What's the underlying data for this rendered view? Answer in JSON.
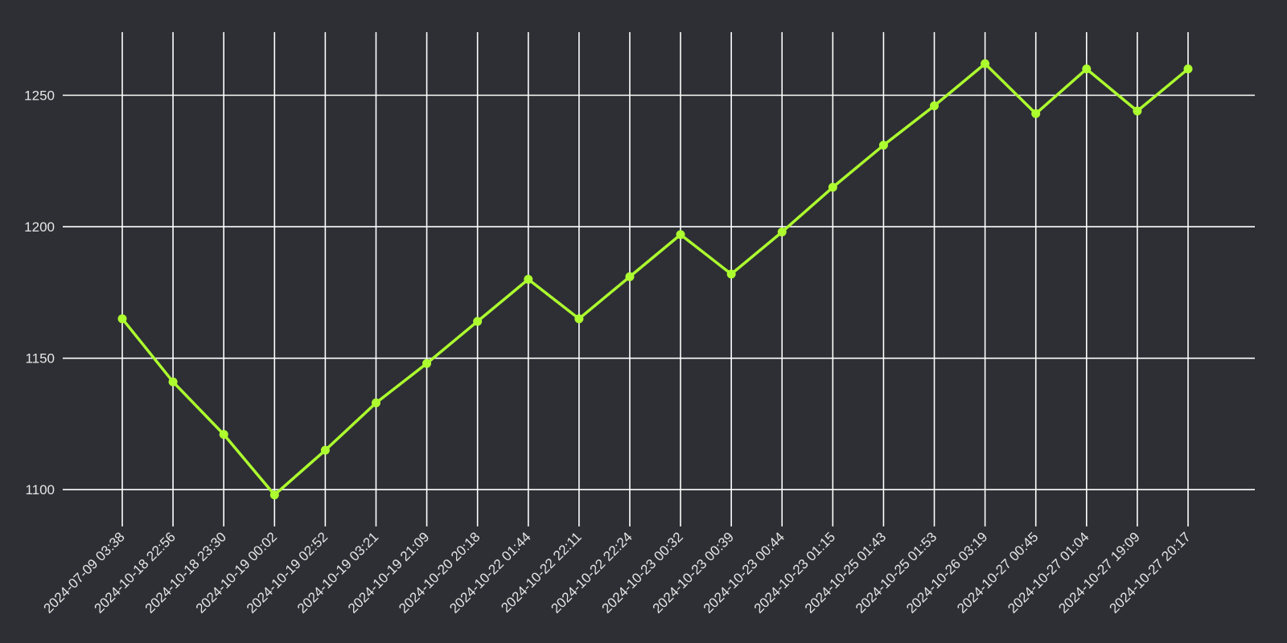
{
  "colors": {
    "background": "#2d2f34",
    "grid": "#ffffff",
    "line": "#adff2f",
    "text": "#e6e6e6"
  },
  "chart_data": {
    "type": "line",
    "title": "",
    "xlabel": "",
    "ylabel": "",
    "grid": true,
    "ylim": [
      1086,
      1274
    ],
    "yticks": [
      1100,
      1150,
      1200,
      1250
    ],
    "categories": [
      "2024-07-09 03:38",
      "2024-10-18 22:56",
      "2024-10-18 23:30",
      "2024-10-19 00:02",
      "2024-10-19 02:52",
      "2024-10-19 03:21",
      "2024-10-19 21:09",
      "2024-10-20 20:18",
      "2024-10-22 01:44",
      "2024-10-22 22:11",
      "2024-10-22 22:24",
      "2024-10-23 00:32",
      "2024-10-23 00:39",
      "2024-10-23 00:44",
      "2024-10-23 01:15",
      "2024-10-25 01:43",
      "2024-10-25 01:53",
      "2024-10-26 03:19",
      "2024-10-27 00:45",
      "2024-10-27 01:04",
      "2024-10-27 19:09",
      "2024-10-27 20:17"
    ],
    "series": [
      {
        "values": [
          1165,
          1141,
          1121,
          1098,
          1115,
          1133,
          1148,
          1164,
          1180,
          1165,
          1181,
          1197,
          1182,
          1198,
          1215,
          1231,
          1246,
          1262,
          1243,
          1260,
          1244,
          1260
        ]
      }
    ]
  }
}
